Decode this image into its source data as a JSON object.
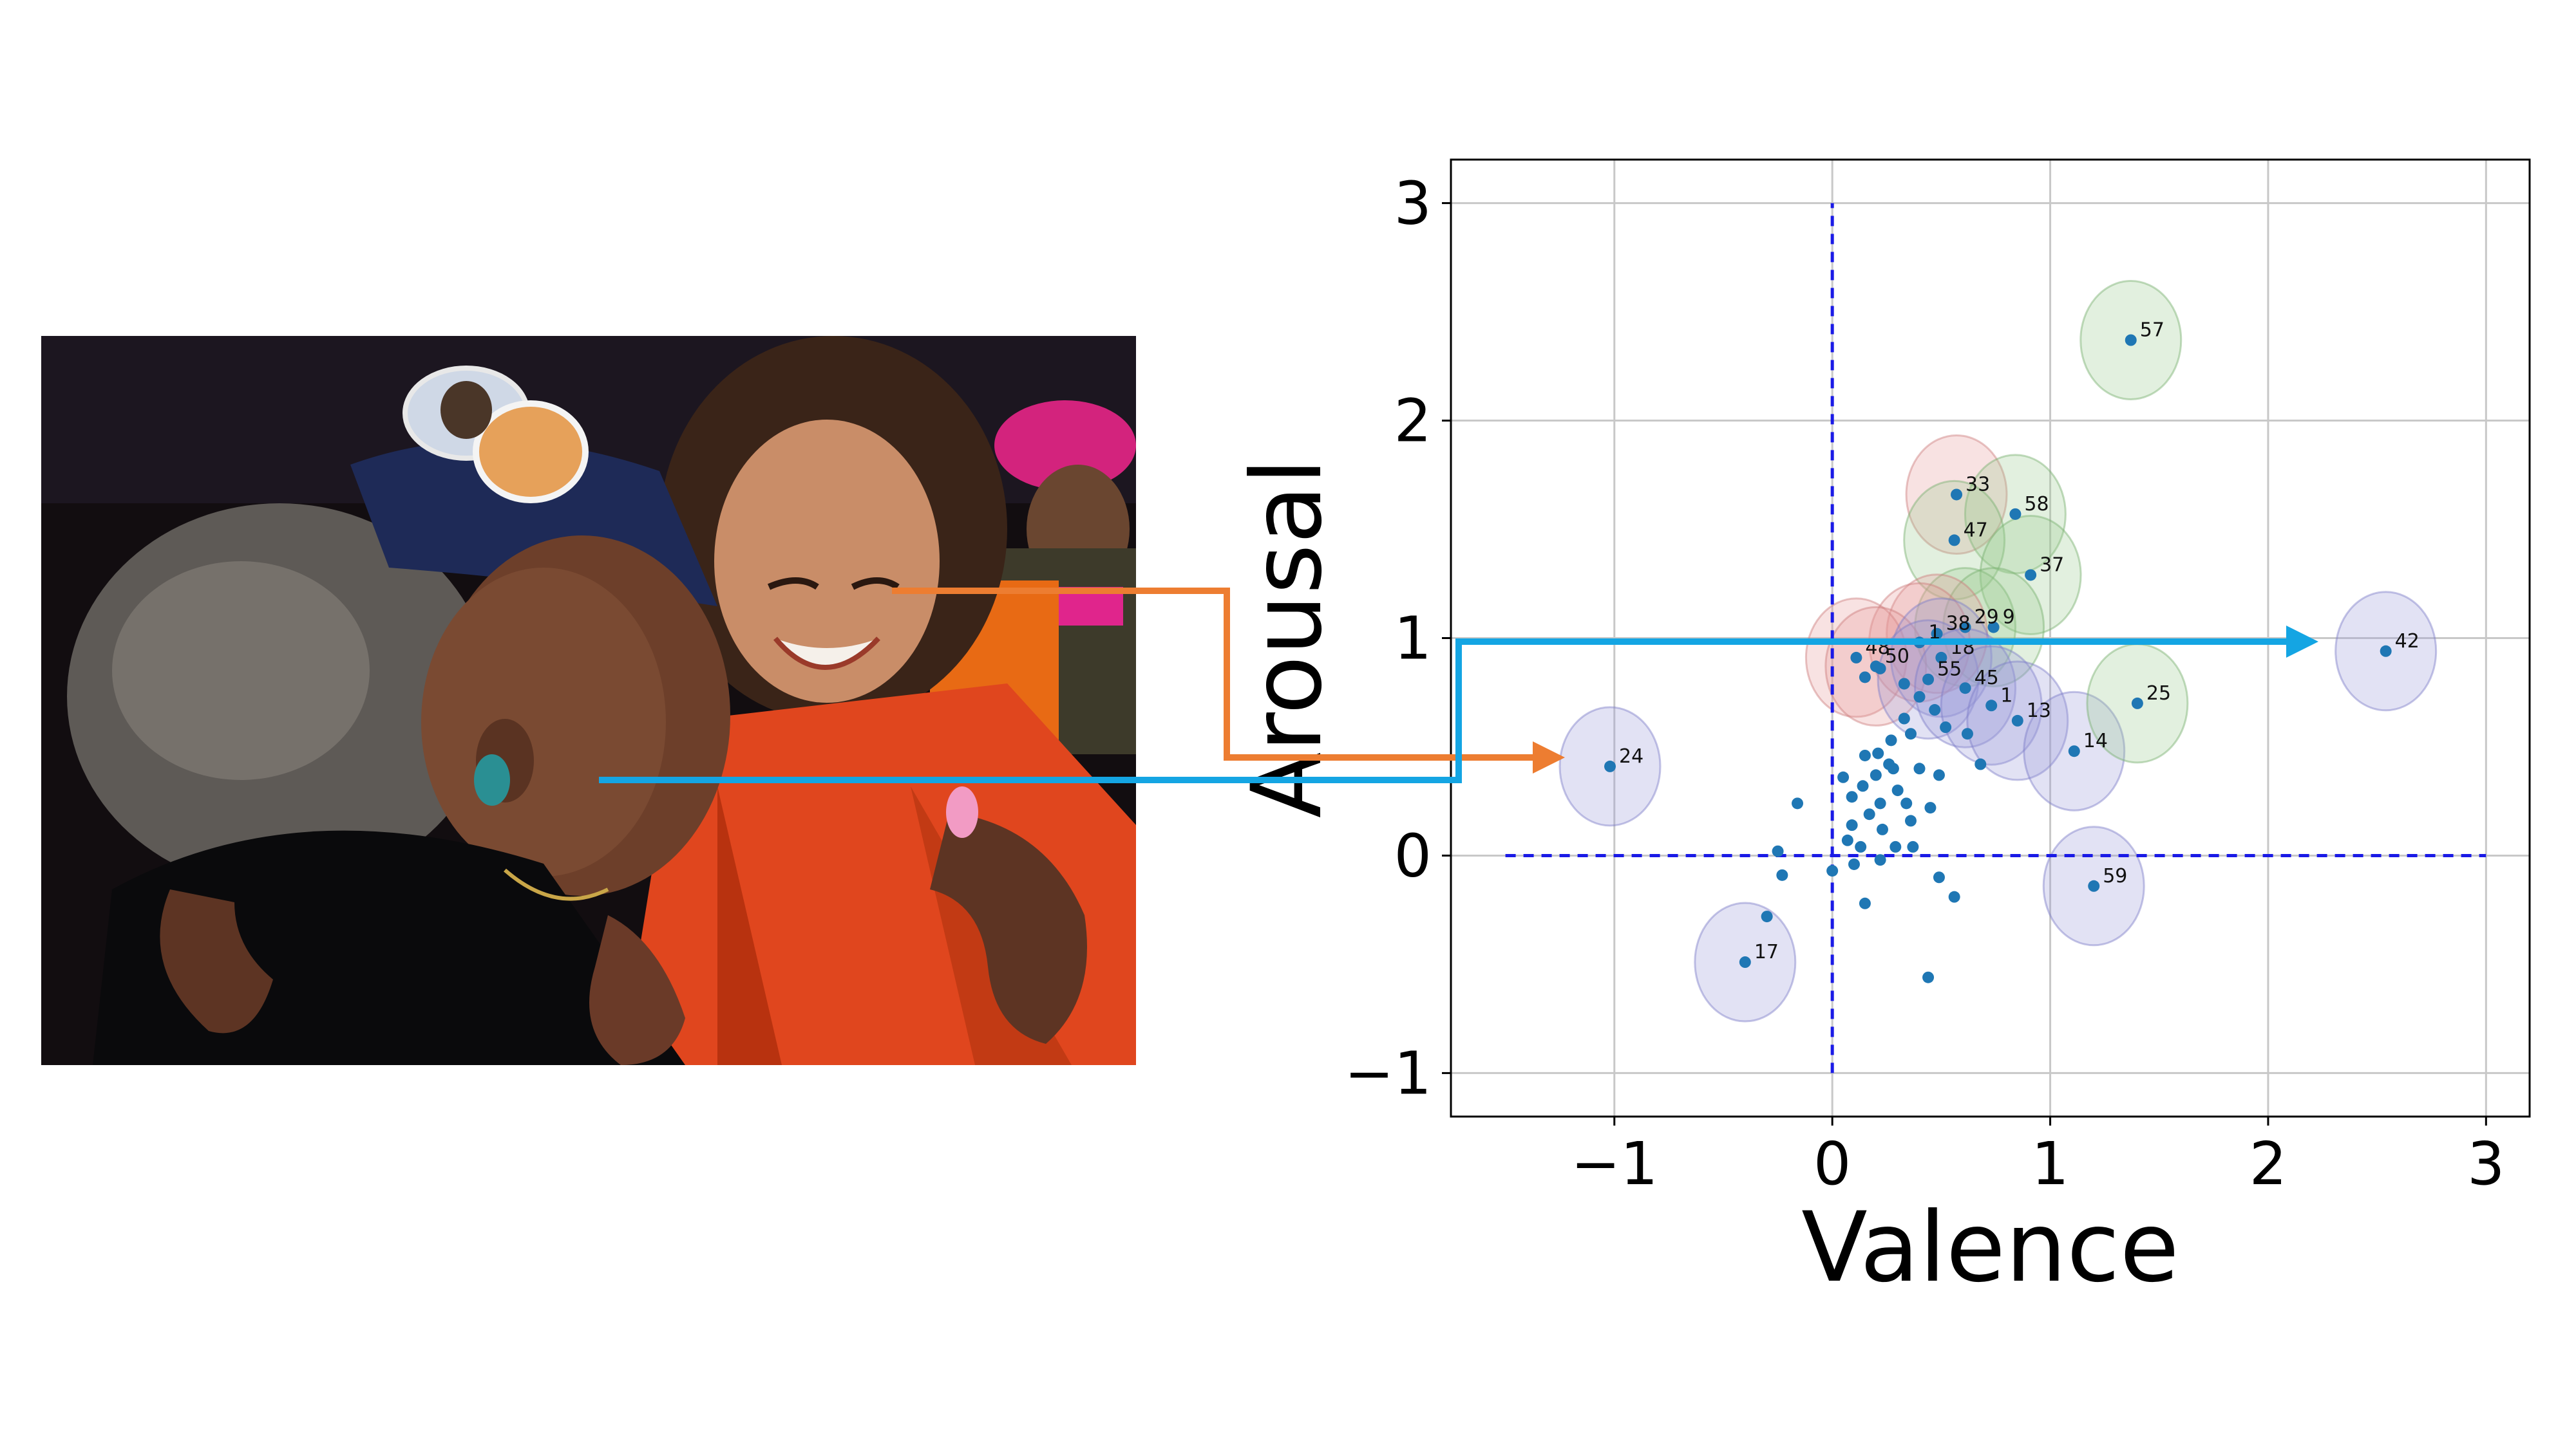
{
  "chart_data": {
    "type": "scatter",
    "xlabel": "Valence",
    "ylabel": "Arousal",
    "xlim": [
      -1.75,
      3.2
    ],
    "ylim": [
      -1.2,
      3.2
    ],
    "xticks": [
      "−1",
      "0",
      "1",
      "2",
      "3"
    ],
    "yticks": [
      "−1",
      "0",
      "1",
      "2",
      "3"
    ],
    "xtick_values": [
      -1,
      0,
      1,
      2,
      3
    ],
    "ytick_values": [
      -1,
      0,
      1,
      2,
      3
    ],
    "grid": true,
    "marker_color": "#1f77b4",
    "reference_line_color": "#1a1ae6",
    "reference_lines": {
      "vertical_x": 0,
      "vertical_y_range": [
        -1,
        3
      ],
      "horizontal_y": 0,
      "horizontal_x_range": [
        -1.5,
        3
      ]
    },
    "labeled_points": [
      {
        "label": "57",
        "x": 1.37,
        "y": 2.37,
        "ellipse": "green"
      },
      {
        "label": "33",
        "x": 0.57,
        "y": 1.66,
        "ellipse": "red"
      },
      {
        "label": "58",
        "x": 0.84,
        "y": 1.57,
        "ellipse": "green"
      },
      {
        "label": "47",
        "x": 0.56,
        "y": 1.45,
        "ellipse": "green"
      },
      {
        "label": "37",
        "x": 0.91,
        "y": 1.29,
        "ellipse": "green"
      },
      {
        "label": "29",
        "x": 0.61,
        "y": 1.05,
        "ellipse": "green"
      },
      {
        "label": "9",
        "x": 0.74,
        "y": 1.05,
        "ellipse": "green"
      },
      {
        "label": "38",
        "x": 0.48,
        "y": 1.02,
        "ellipse": "red"
      },
      {
        "label": "1",
        "x": 0.4,
        "y": 0.98,
        "ellipse": "red"
      },
      {
        "label": "48",
        "x": 0.11,
        "y": 0.91,
        "ellipse": "red"
      },
      {
        "label": "50",
        "x": 0.2,
        "y": 0.87,
        "ellipse": "red"
      },
      {
        "label": "18",
        "x": 0.5,
        "y": 0.91,
        "ellipse": "blue"
      },
      {
        "label": "55",
        "x": 0.44,
        "y": 0.81,
        "ellipse": "blue"
      },
      {
        "label": "45",
        "x": 0.61,
        "y": 0.77,
        "ellipse": "blue"
      },
      {
        "label": "1",
        "x": 0.73,
        "y": 0.69,
        "ellipse": "blue"
      },
      {
        "label": "13",
        "x": 0.85,
        "y": 0.62,
        "ellipse": "blue"
      },
      {
        "label": "14",
        "x": 1.11,
        "y": 0.48,
        "ellipse": "blue"
      },
      {
        "label": "25",
        "x": 1.4,
        "y": 0.7,
        "ellipse": "green"
      },
      {
        "label": "42",
        "x": 2.54,
        "y": 0.94,
        "ellipse": "blue"
      },
      {
        "label": "24",
        "x": -1.02,
        "y": 0.41,
        "ellipse": "blue"
      },
      {
        "label": "59",
        "x": 1.2,
        "y": -0.14,
        "ellipse": "blue"
      },
      {
        "label": "17",
        "x": -0.4,
        "y": -0.49,
        "ellipse": "blue"
      }
    ],
    "unlabeled_points": [
      [
        0.15,
        0.82
      ],
      [
        0.22,
        0.86
      ],
      [
        0.33,
        0.79
      ],
      [
        0.4,
        0.73
      ],
      [
        0.47,
        0.67
      ],
      [
        0.33,
        0.63
      ],
      [
        0.52,
        0.59
      ],
      [
        0.62,
        0.56
      ],
      [
        0.68,
        0.42
      ],
      [
        0.36,
        0.56
      ],
      [
        0.27,
        0.53
      ],
      [
        0.21,
        0.47
      ],
      [
        0.15,
        0.46
      ],
      [
        0.26,
        0.42
      ],
      [
        0.28,
        0.4
      ],
      [
        0.4,
        0.4
      ],
      [
        0.49,
        0.37
      ],
      [
        0.2,
        0.37
      ],
      [
        0.05,
        0.36
      ],
      [
        0.14,
        0.32
      ],
      [
        0.3,
        0.3
      ],
      [
        0.09,
        0.27
      ],
      [
        0.34,
        0.24
      ],
      [
        0.22,
        0.24
      ],
      [
        0.45,
        0.22
      ],
      [
        0.17,
        0.19
      ],
      [
        -0.16,
        0.24
      ],
      [
        0.36,
        0.16
      ],
      [
        0.09,
        0.14
      ],
      [
        0.23,
        0.12
      ],
      [
        0.29,
        0.04
      ],
      [
        0.37,
        0.04
      ],
      [
        0.07,
        0.07
      ],
      [
        0.13,
        0.04
      ],
      [
        -0.25,
        0.02
      ],
      [
        0.22,
        -0.02
      ],
      [
        0.1,
        -0.04
      ],
      [
        0.0,
        -0.07
      ],
      [
        -0.23,
        -0.09
      ],
      [
        0.49,
        -0.1
      ],
      [
        0.56,
        -0.19
      ],
      [
        0.15,
        -0.22
      ],
      [
        -0.3,
        -0.28
      ],
      [
        0.44,
        -0.56
      ]
    ]
  },
  "arrows": {
    "orange_color": "#ed7d31",
    "blue_color": "#14a5e3"
  }
}
